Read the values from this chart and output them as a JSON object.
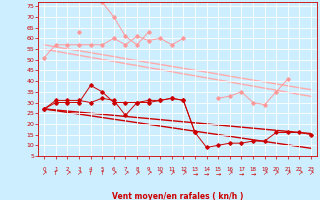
{
  "bg_color": "#cceeff",
  "grid_color": "#ffffff",
  "xlabel": "Vent moyen/en rafales ( kn/h )",
  "xlabel_color": "#cc0000",
  "tick_color": "#cc0000",
  "x_values": [
    0,
    1,
    2,
    3,
    4,
    5,
    6,
    7,
    8,
    9,
    10,
    11,
    12,
    13,
    14,
    15,
    16,
    17,
    18,
    19,
    20,
    21,
    22,
    23
  ],
  "series": [
    {
      "name": "rafales_jagged_light",
      "color": "#ff9999",
      "linewidth": 0.7,
      "marker": "D",
      "markersize": 1.8,
      "values": [
        51,
        57,
        57,
        57,
        57,
        57,
        60,
        57,
        61,
        59,
        60,
        57,
        60,
        null,
        null,
        null,
        null,
        null,
        null,
        null,
        null,
        null,
        null,
        null
      ],
      "linestyle": "-"
    },
    {
      "name": "rafales_jagged_light2",
      "color": "#ff9999",
      "linewidth": 0.7,
      "marker": "D",
      "markersize": 1.8,
      "values": [
        null,
        null,
        null,
        null,
        null,
        null,
        null,
        null,
        null,
        null,
        null,
        null,
        null,
        null,
        null,
        32,
        33,
        35,
        30,
        29,
        35,
        41,
        null,
        null
      ],
      "linestyle": "-"
    },
    {
      "name": "peak_light",
      "color": "#ff9999",
      "linewidth": 0.7,
      "marker": "D",
      "markersize": 1.8,
      "values": [
        null,
        null,
        null,
        63,
        null,
        77,
        70,
        61,
        57,
        63,
        null,
        null,
        null,
        null,
        null,
        null,
        null,
        null,
        null,
        null,
        null,
        null,
        null,
        null
      ],
      "linestyle": "-"
    },
    {
      "name": "trend_light1",
      "color": "#ffaaaa",
      "linewidth": 1.0,
      "marker": null,
      "markersize": 0,
      "values": [
        57,
        56.0,
        55.1,
        54.2,
        53.3,
        52.4,
        51.5,
        50.5,
        49.6,
        48.7,
        47.8,
        46.9,
        46.0,
        45.1,
        44.2,
        43.3,
        42.3,
        41.4,
        40.5,
        39.6,
        38.7,
        37.8,
        36.9,
        36.0
      ],
      "linestyle": "-"
    },
    {
      "name": "trend_light2",
      "color": "#ffaaaa",
      "linewidth": 1.0,
      "marker": null,
      "markersize": 0,
      "values": [
        55,
        54.0,
        53.0,
        52.1,
        51.1,
        50.2,
        49.2,
        48.2,
        47.3,
        46.3,
        45.4,
        44.4,
        43.4,
        42.5,
        41.5,
        40.6,
        39.6,
        38.6,
        37.7,
        36.7,
        35.8,
        34.8,
        33.8,
        32.9
      ],
      "linestyle": "-"
    },
    {
      "name": "mean_dark1",
      "color": "#cc0000",
      "linewidth": 0.7,
      "marker": "D",
      "markersize": 1.8,
      "values": [
        27,
        31,
        31,
        31,
        30,
        32,
        31,
        24,
        30,
        31,
        31,
        32,
        31,
        16,
        9,
        10,
        11,
        11,
        12,
        12,
        16,
        16,
        16,
        15
      ],
      "linestyle": "-"
    },
    {
      "name": "mean_dark2",
      "color": "#cc0000",
      "linewidth": 0.7,
      "marker": "D",
      "markersize": 1.8,
      "values": [
        27,
        30,
        30,
        30,
        38,
        35,
        30,
        30,
        30,
        30,
        31,
        32,
        31,
        16,
        null,
        null,
        null,
        null,
        null,
        null,
        null,
        null,
        null,
        null
      ],
      "linestyle": "-"
    },
    {
      "name": "trend_dark1",
      "color": "#cc0000",
      "linewidth": 1.0,
      "marker": null,
      "markersize": 0,
      "values": [
        27,
        26.5,
        26.0,
        25.5,
        25.0,
        24.5,
        24.0,
        23.5,
        23.0,
        22.5,
        22.0,
        21.5,
        21.0,
        20.5,
        20.0,
        19.5,
        19.0,
        18.5,
        18.0,
        17.5,
        17.0,
        16.5,
        16.0,
        15.5
      ],
      "linestyle": "-"
    },
    {
      "name": "trend_dark2",
      "color": "#cc0000",
      "linewidth": 1.0,
      "marker": null,
      "markersize": 0,
      "values": [
        27,
        26.2,
        25.4,
        24.6,
        23.8,
        23.0,
        22.2,
        21.4,
        20.6,
        19.8,
        19.0,
        18.2,
        17.4,
        16.6,
        15.8,
        15.0,
        14.2,
        13.4,
        12.6,
        11.8,
        11.0,
        10.2,
        9.4,
        8.6
      ],
      "linestyle": "-"
    }
  ],
  "ylim": [
    5,
    77
  ],
  "yticks": [
    5,
    10,
    15,
    20,
    25,
    30,
    35,
    40,
    45,
    50,
    55,
    60,
    65,
    70,
    75
  ],
  "xlim": [
    -0.5,
    23.5
  ],
  "arrow_symbols": [
    "↗",
    "↑",
    "↗",
    "↗",
    "↑",
    "↑",
    "↗",
    "↗",
    "↗",
    "↗",
    "↗",
    "↗",
    "↗",
    "→",
    "→",
    "→",
    "↗",
    "→",
    "→",
    "↗",
    "↗",
    "↗",
    "↗",
    "↗"
  ]
}
